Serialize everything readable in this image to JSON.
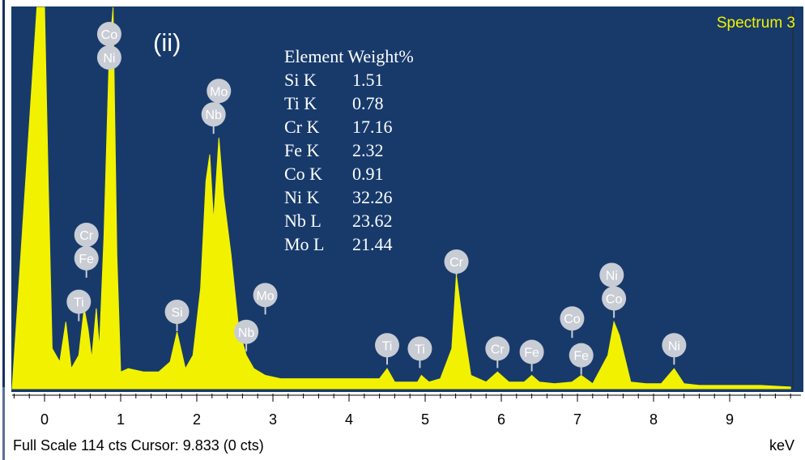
{
  "chart_data": {
    "type": "line",
    "title": "Spectrum 3",
    "panel_label": "(ii)",
    "xlabel": "keV",
    "xlim": [
      -0.4,
      9.85
    ],
    "ylim": [
      0,
      114
    ],
    "xticks": [
      "0",
      "1",
      "2",
      "3",
      "4",
      "5",
      "6",
      "7",
      "8",
      "9"
    ],
    "series": [
      {
        "color": "#f2f200",
        "x": [
          -0.1,
          0.0,
          0.05,
          0.1,
          0.2,
          0.28,
          0.35,
          0.45,
          0.52,
          0.57,
          0.62,
          0.68,
          0.72,
          0.78,
          0.85,
          0.9,
          0.95,
          1.0,
          1.1,
          1.3,
          1.5,
          1.65,
          1.74,
          1.85,
          1.95,
          2.05,
          2.12,
          2.17,
          2.22,
          2.29,
          2.35,
          2.45,
          2.55,
          2.65,
          2.75,
          2.9,
          3.1,
          3.5,
          4.0,
          4.4,
          4.5,
          4.6,
          4.9,
          4.95,
          5.05,
          5.2,
          5.35,
          5.41,
          5.48,
          5.6,
          5.8,
          5.95,
          6.1,
          6.3,
          6.4,
          6.5,
          6.7,
          6.93,
          7.05,
          7.2,
          7.4,
          7.48,
          7.55,
          7.7,
          7.9,
          8.1,
          8.27,
          8.4,
          8.6,
          9.0,
          9.4,
          9.8
        ],
        "y": [
          114,
          114,
          60,
          12,
          8,
          20,
          6,
          10,
          24,
          18,
          9,
          24,
          12,
          45,
          100,
          114,
          40,
          5,
          6,
          5,
          5,
          8,
          17,
          6,
          10,
          30,
          62,
          70,
          50,
          75,
          58,
          40,
          18,
          10,
          6,
          4,
          3,
          3,
          3,
          3,
          6,
          2,
          2,
          4,
          2,
          3,
          12,
          34,
          22,
          4,
          2,
          5,
          2,
          2,
          4,
          2,
          1.5,
          2,
          4,
          1.5,
          10,
          20,
          16,
          2,
          1.5,
          1.5,
          6,
          1.5,
          1,
          1,
          1,
          0.5
        ]
      }
    ],
    "element_labels": [
      {
        "text": "Co",
        "x": 0.85,
        "y": 106
      },
      {
        "text": "Ni",
        "x": 0.85,
        "y": 99
      },
      {
        "text": "Cr",
        "x": 0.55,
        "y": 46
      },
      {
        "text": "Fe",
        "x": 0.55,
        "y": 39
      },
      {
        "text": "Ti",
        "x": 0.45,
        "y": 26
      },
      {
        "text": "Si",
        "x": 1.74,
        "y": 23
      },
      {
        "text": "Mo",
        "x": 2.29,
        "y": 89
      },
      {
        "text": "Nb",
        "x": 2.22,
        "y": 82
      },
      {
        "text": "Mo",
        "x": 2.9,
        "y": 28
      },
      {
        "text": "Nb",
        "x": 2.65,
        "y": 17
      },
      {
        "text": "Ti",
        "x": 4.5,
        "y": 13
      },
      {
        "text": "Ti",
        "x": 4.93,
        "y": 12
      },
      {
        "text": "Cr",
        "x": 5.41,
        "y": 38
      },
      {
        "text": "Cr",
        "x": 5.95,
        "y": 12
      },
      {
        "text": "Fe",
        "x": 6.4,
        "y": 11
      },
      {
        "text": "Co",
        "x": 6.93,
        "y": 21
      },
      {
        "text": "Fe",
        "x": 7.05,
        "y": 10
      },
      {
        "text": "Ni",
        "x": 7.45,
        "y": 34
      },
      {
        "text": "Co",
        "x": 7.48,
        "y": 27
      },
      {
        "text": "Ni",
        "x": 8.27,
        "y": 13
      }
    ],
    "table": {
      "header": "Element Weight%",
      "rows": [
        {
          "element": "Si K",
          "value": "1.51"
        },
        {
          "element": "Ti K",
          "value": "0.78"
        },
        {
          "element": "Cr K",
          "value": "17.16"
        },
        {
          "element": "Fe K",
          "value": "2.32"
        },
        {
          "element": "Co K",
          "value": "0.91"
        },
        {
          "element": "Ni K",
          "value": "32.26"
        },
        {
          "element": "Nb L",
          "value": "23.62"
        },
        {
          "element": "Mo L",
          "value": "21.44"
        }
      ]
    },
    "cursor_x": 9.833,
    "grid": false,
    "legend": "none"
  },
  "status": {
    "text": "Full Scale 114 cts Cursor: 9.833  (0 cts)",
    "unit": "keV"
  },
  "colors": {
    "plot_background": "#173a6b",
    "spectrum": "#f2f200",
    "title": "#f2f200",
    "label_bubble": "#c8ccd4",
    "label_text": "#ffffff",
    "table_text": "#ffffff"
  }
}
